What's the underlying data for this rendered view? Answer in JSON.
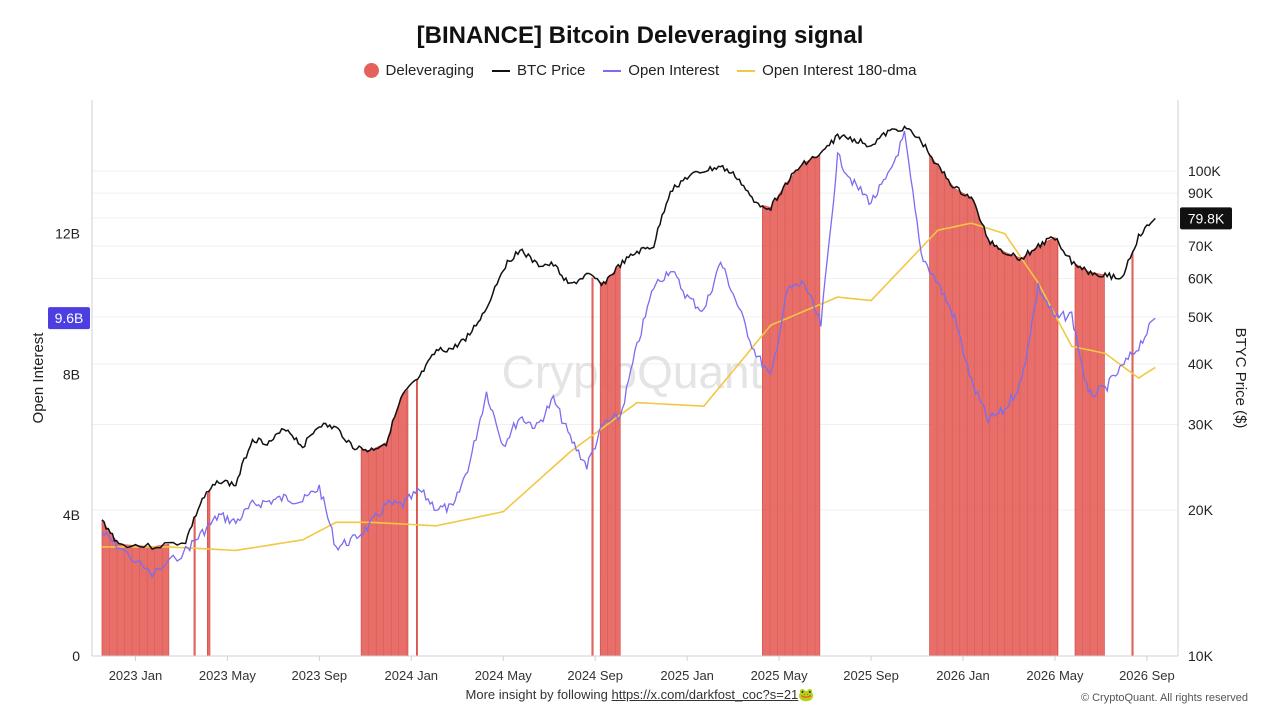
{
  "chart_data": {
    "type": "line",
    "title": "[BINANCE] Bitcoin Deleveraging signal",
    "legend": [
      {
        "name": "Deleveraging",
        "color": "#e5625c",
        "shape": "dot"
      },
      {
        "name": "BTC Price",
        "color": "#111111",
        "shape": "line"
      },
      {
        "name": "Open Interest",
        "color": "#7b6cf0",
        "shape": "line"
      },
      {
        "name": "Open Interest 180-dma",
        "color": "#f2c744",
        "shape": "line"
      }
    ],
    "legend_position": "top-center",
    "x_ticks": [
      "2023 Jan",
      "2023 May",
      "2023 Sep",
      "2024 Jan",
      "2024 May",
      "2024 Sep",
      "2025 Jan",
      "2025 May",
      "2025 Sep",
      "2026 Jan",
      "2026 May",
      "2026 Sep"
    ],
    "y_left": {
      "label": "Open Interest",
      "ticks": [
        "0",
        "4B",
        "8B",
        "12B"
      ],
      "range": [
        0,
        15.8
      ],
      "current": "9.6B",
      "current_value": 9.6
    },
    "y_right": {
      "label": "BTYC Price ($)",
      "scale": "log",
      "ticks": [
        "10K",
        "20K",
        "30K",
        "40K",
        "50K",
        "60K",
        "70K",
        "80K",
        "90K",
        "100K"
      ],
      "range": [
        10000,
        140000
      ],
      "current": "79.8K",
      "current_value": 79800
    },
    "btc_price": [
      [
        0,
        19000
      ],
      [
        1,
        17000
      ],
      [
        3,
        16800
      ],
      [
        5,
        17200
      ],
      [
        6,
        21000
      ],
      [
        7,
        23000
      ],
      [
        8,
        22500
      ],
      [
        9,
        28000
      ],
      [
        10,
        27500
      ],
      [
        11,
        29500
      ],
      [
        12,
        27000
      ],
      [
        13,
        30000
      ],
      [
        14,
        29500
      ],
      [
        15,
        27000
      ],
      [
        16,
        26500
      ],
      [
        17,
        27500
      ],
      [
        18,
        34500
      ],
      [
        19,
        37500
      ],
      [
        20,
        42500
      ],
      [
        21,
        43000
      ],
      [
        22,
        46000
      ],
      [
        23,
        52000
      ],
      [
        24,
        63000
      ],
      [
        25,
        69000
      ],
      [
        26,
        64000
      ],
      [
        27,
        64000
      ],
      [
        28,
        58000
      ],
      [
        29,
        61000
      ],
      [
        30,
        58500
      ],
      [
        31,
        64000
      ],
      [
        32,
        68000
      ],
      [
        33,
        70000
      ],
      [
        34,
        91000
      ],
      [
        35,
        97000
      ],
      [
        36,
        100000
      ],
      [
        37,
        102000
      ],
      [
        38,
        97000
      ],
      [
        39,
        86000
      ],
      [
        40,
        84000
      ],
      [
        41,
        95000
      ],
      [
        42,
        104000
      ],
      [
        43,
        108000
      ],
      [
        44,
        118000
      ],
      [
        45,
        116000
      ],
      [
        46,
        113000
      ],
      [
        47,
        120000
      ],
      [
        48,
        123000
      ],
      [
        49,
        115000
      ],
      [
        50,
        102000
      ],
      [
        51,
        92000
      ],
      [
        52,
        88000
      ],
      [
        53,
        72000
      ],
      [
        54,
        68000
      ],
      [
        55,
        66000
      ],
      [
        56,
        70000
      ],
      [
        57,
        73000
      ],
      [
        58,
        65000
      ],
      [
        59,
        62000
      ],
      [
        60,
        61000
      ],
      [
        61,
        60000
      ],
      [
        62,
        73000
      ],
      [
        63,
        79800
      ]
    ],
    "open_interest": [
      [
        0,
        3.5
      ],
      [
        1,
        3.1
      ],
      [
        3,
        2.3
      ],
      [
        5,
        3.0
      ],
      [
        6,
        3.5
      ],
      [
        7,
        4.0
      ],
      [
        8,
        3.8
      ],
      [
        9,
        4.3
      ],
      [
        10,
        4.4
      ],
      [
        11,
        4.5
      ],
      [
        12,
        4.4
      ],
      [
        13,
        4.8
      ],
      [
        14,
        3.1
      ],
      [
        15,
        3.3
      ],
      [
        16,
        3.7
      ],
      [
        17,
        4.3
      ],
      [
        18,
        4.3
      ],
      [
        19,
        4.7
      ],
      [
        20,
        4.2
      ],
      [
        21,
        4.2
      ],
      [
        22,
        5.5
      ],
      [
        23,
        7.5
      ],
      [
        24,
        6.0
      ],
      [
        25,
        6.8
      ],
      [
        26,
        6.5
      ],
      [
        27,
        7.3
      ],
      [
        28,
        6.2
      ],
      [
        29,
        5.4
      ],
      [
        30,
        6.6
      ],
      [
        31,
        6.8
      ],
      [
        32,
        8.8
      ],
      [
        33,
        10.5
      ],
      [
        34,
        11.0
      ],
      [
        35,
        10.2
      ],
      [
        36,
        9.8
      ],
      [
        37,
        11.2
      ],
      [
        38,
        10.0
      ],
      [
        39,
        8.7
      ],
      [
        40,
        7.9
      ],
      [
        41,
        10.4
      ],
      [
        42,
        10.6
      ],
      [
        43,
        9.4
      ],
      [
        44,
        14.2
      ],
      [
        45,
        13.4
      ],
      [
        46,
        12.9
      ],
      [
        47,
        13.6
      ],
      [
        48,
        14.8
      ],
      [
        49,
        11.4
      ],
      [
        50,
        10.6
      ],
      [
        51,
        9.6
      ],
      [
        52,
        7.8
      ],
      [
        53,
        6.7
      ],
      [
        54,
        7.0
      ],
      [
        55,
        7.8
      ],
      [
        56,
        10.5
      ],
      [
        57,
        9.6
      ],
      [
        58,
        9.7
      ],
      [
        59,
        7.4
      ],
      [
        60,
        7.6
      ],
      [
        61,
        8.2
      ],
      [
        62,
        8.8
      ],
      [
        63,
        9.6
      ]
    ],
    "open_interest_180dma": [
      [
        0,
        3.1
      ],
      [
        4,
        3.1
      ],
      [
        8,
        3.0
      ],
      [
        12,
        3.3
      ],
      [
        14,
        3.8
      ],
      [
        16,
        3.8
      ],
      [
        20,
        3.7
      ],
      [
        24,
        4.1
      ],
      [
        28,
        5.8
      ],
      [
        32,
        7.2
      ],
      [
        36,
        7.1
      ],
      [
        40,
        9.4
      ],
      [
        44,
        10.2
      ],
      [
        46,
        10.1
      ],
      [
        50,
        12.1
      ],
      [
        52,
        12.3
      ],
      [
        54,
        12.0
      ],
      [
        56,
        10.6
      ],
      [
        58,
        8.8
      ],
      [
        60,
        8.6
      ],
      [
        62,
        7.9
      ],
      [
        63,
        8.2
      ]
    ],
    "deleveraging_periods": [
      [
        0,
        4
      ],
      [
        5.5,
        5.6
      ],
      [
        6.3,
        6.5
      ],
      [
        15.5,
        18.3
      ],
      [
        18.8,
        18.9
      ],
      [
        29.3,
        29.4
      ],
      [
        29.8,
        31.0
      ],
      [
        39.5,
        43.0
      ],
      [
        49.5,
        57.2
      ],
      [
        58.2,
        60.0
      ],
      [
        61.6,
        61.7
      ]
    ],
    "grid": true
  },
  "watermark": "CryptoQuant",
  "footer": {
    "text": "More insight by following",
    "link": "https://x.com/darkfost_coc?s=21",
    "emoji": "🐸"
  },
  "copyright": "© CryptoQuant. All rights reserved"
}
